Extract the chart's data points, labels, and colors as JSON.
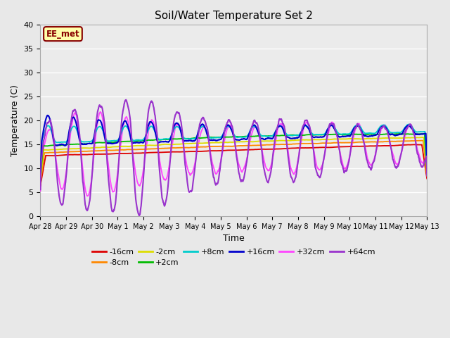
{
  "title": "Soil/Water Temperature Set 2",
  "xlabel": "Time",
  "ylabel": "Temperature (C)",
  "ylim": [
    0,
    40
  ],
  "yticks": [
    0,
    5,
    10,
    15,
    20,
    25,
    30,
    35,
    40
  ],
  "background_color": "#e8e8e8",
  "plot_bg_color": "#ebebeb",
  "annotation_text": "EE_met",
  "annotation_bg": "#ffffaa",
  "annotation_border": "#880000",
  "series_colors": {
    "-16cm": "#dd0000",
    "-8cm": "#ff8800",
    "-2cm": "#dddd00",
    "+2cm": "#00bb00",
    "+8cm": "#00cccc",
    "+16cm": "#0000cc",
    "+32cm": "#ff44ff",
    "+64cm": "#9933cc"
  },
  "xtick_labels": [
    "Apr 28",
    "Apr 29",
    "Apr 30",
    "May 1",
    "May 2",
    "May 3",
    "May 4",
    "May 5",
    "May 6",
    "May 7",
    "May 8",
    "May 9",
    "May 10",
    "May 11",
    "May 12",
    "May 13"
  ],
  "num_points": 1440,
  "time_days": 15
}
